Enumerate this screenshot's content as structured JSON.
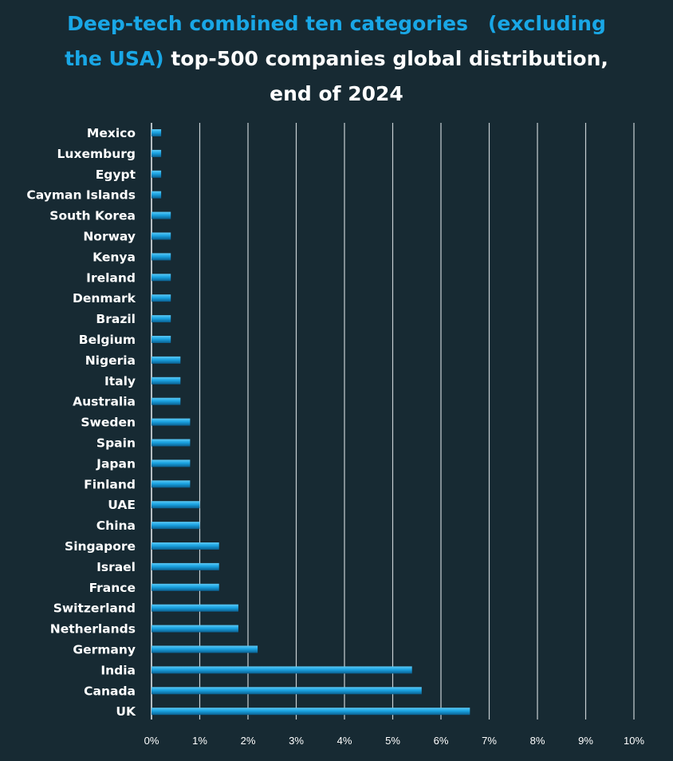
{
  "chart_data": {
    "type": "bar",
    "orientation": "horizontal",
    "title_line1": "Deep-tech combined ten categories　(excluding",
    "title_line2_highlight": "the USA)",
    "title_line2_rest": " top-500 companies global distribution,",
    "title_line3": "end of 2024",
    "categories": [
      "Mexico",
      "Luxemburg",
      "Egypt",
      "Cayman Islands",
      "South Korea",
      "Norway",
      "Kenya",
      "Ireland",
      "Denmark",
      "Brazil",
      "Belgium",
      "Nigeria",
      "Italy",
      "Australia",
      "Sweden",
      "Spain",
      "Japan",
      "Finland",
      "UAE",
      "China",
      "Singapore",
      "Israel",
      "France",
      "Switzerland",
      "Netherlands",
      "Germany",
      "India",
      "Canada",
      "UK"
    ],
    "values": [
      0.2,
      0.2,
      0.2,
      0.2,
      0.4,
      0.4,
      0.4,
      0.4,
      0.4,
      0.4,
      0.4,
      0.6,
      0.6,
      0.6,
      0.8,
      0.8,
      0.8,
      0.8,
      1.0,
      1.0,
      1.4,
      1.4,
      1.4,
      1.8,
      1.8,
      2.2,
      5.4,
      5.6,
      6.6
    ],
    "x_ticks": [
      "0%",
      "1%",
      "2%",
      "3%",
      "4%",
      "5%",
      "6%",
      "7%",
      "8%",
      "9%",
      "10%"
    ],
    "xlim": [
      0,
      10
    ],
    "grid": true,
    "colors": {
      "bar": "#19a7e6",
      "highlight": "#19a7e6",
      "background": "#172a33",
      "grid": "#c8d0d4"
    }
  }
}
